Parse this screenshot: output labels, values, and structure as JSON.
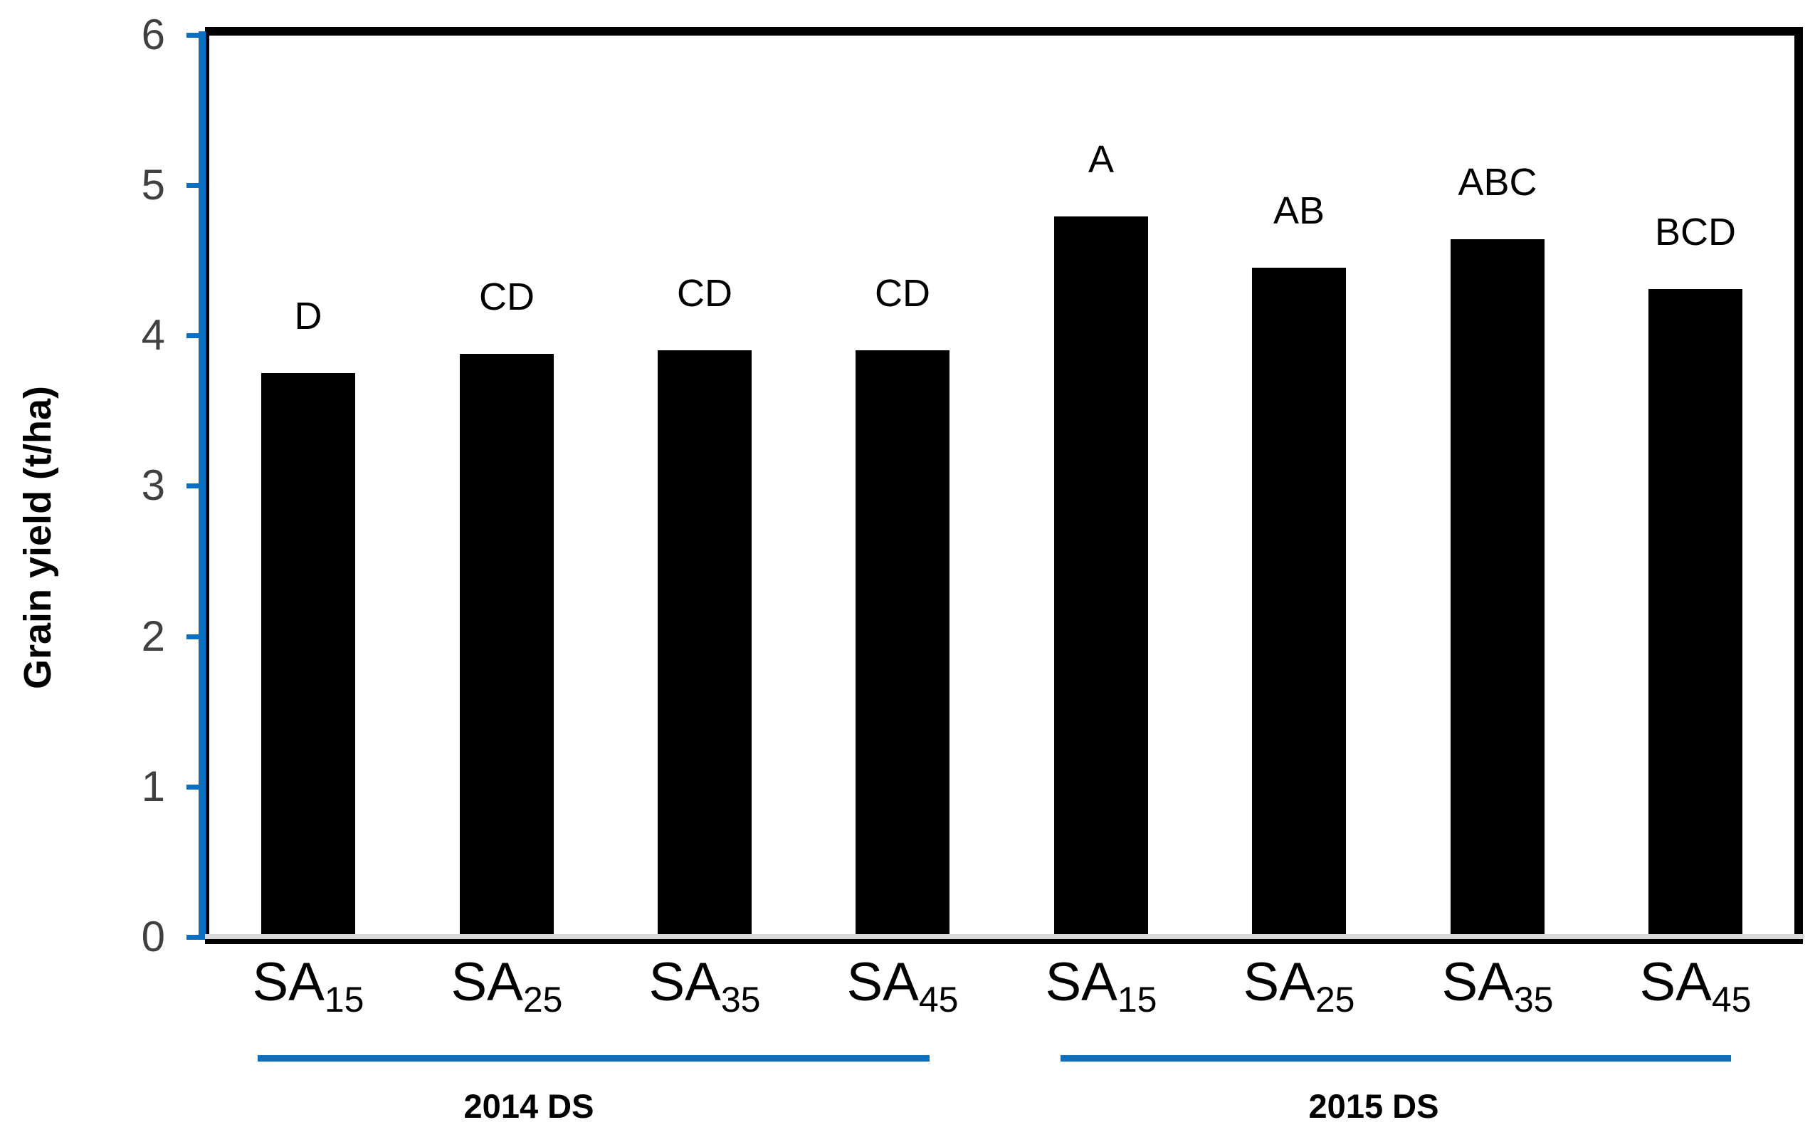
{
  "chart_data": {
    "type": "bar",
    "title": "",
    "xlabel": "",
    "ylabel": "Grain yield (t/ha)",
    "ylim": [
      0,
      6
    ],
    "yticks": [
      0,
      1,
      2,
      3,
      4,
      5,
      6
    ],
    "grid": false,
    "legend": false,
    "bar_color": "#000000",
    "axis_color": "#0A70C3",
    "tick_label_color": "#404040",
    "baseline_gray_color": "#D9D9D9",
    "bars": [
      {
        "category_base": "SA",
        "category_sub": "15",
        "value": 3.75,
        "sig_label": "D",
        "group": "2014 DS"
      },
      {
        "category_base": "SA",
        "category_sub": "25",
        "value": 3.88,
        "sig_label": "CD",
        "group": "2014 DS"
      },
      {
        "category_base": "SA",
        "category_sub": "35",
        "value": 3.9,
        "sig_label": "CD",
        "group": "2014 DS"
      },
      {
        "category_base": "SA",
        "category_sub": "45",
        "value": 3.9,
        "sig_label": "CD",
        "group": "2014 DS"
      },
      {
        "category_base": "SA",
        "category_sub": "15",
        "value": 4.79,
        "sig_label": "A",
        "group": "2015 DS"
      },
      {
        "category_base": "SA",
        "category_sub": "25",
        "value": 4.45,
        "sig_label": "AB",
        "group": "2015 DS"
      },
      {
        "category_base": "SA",
        "category_sub": "35",
        "value": 4.64,
        "sig_label": "ABC",
        "group": "2015 DS"
      },
      {
        "category_base": "SA",
        "category_sub": "45",
        "value": 4.31,
        "sig_label": "BCD",
        "group": "2015 DS"
      }
    ],
    "groups": [
      {
        "label": "2014 DS"
      },
      {
        "label": "2015 DS"
      }
    ]
  }
}
